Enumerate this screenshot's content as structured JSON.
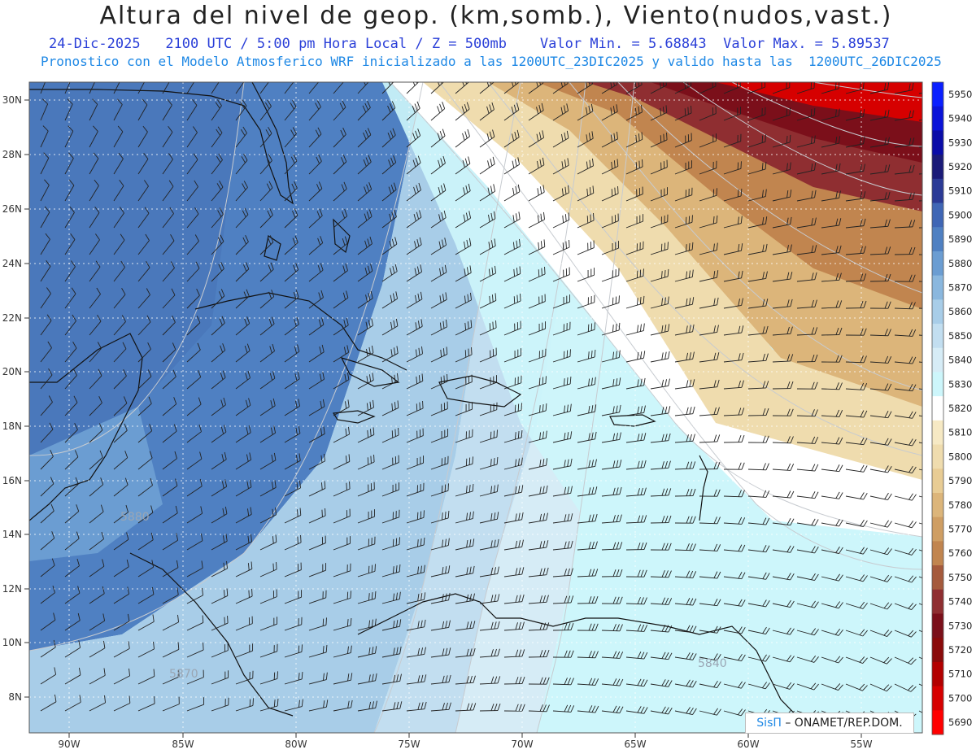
{
  "header": {
    "title": "Altura del nivel de geop. (km,somb.), Viento(nudos,vast.)",
    "date": "24-Dic-2025",
    "time_info": "2100 UTC / 5:00 pm Hora Local / Z = 500mb",
    "val_min": "Valor Min. = 5.68843",
    "val_max": "Valor Max. = 5.89537",
    "model_info": "Pronostico con el Modelo Atmosferico WRF inicializado a las 1200UTC_23DIC2025 y valido hasta las  1200UTC_26DIC2025"
  },
  "axes": {
    "lat_labels": [
      "30N",
      "28N",
      "26N",
      "24N",
      "22N",
      "20N",
      "18N",
      "16N",
      "14N",
      "12N",
      "10N",
      "8N"
    ],
    "lon_labels": [
      "90W",
      "85W",
      "80W",
      "75W",
      "70W",
      "65W",
      "60W",
      "55W"
    ]
  },
  "colorbar": {
    "levels": [
      "5950",
      "5940",
      "5930",
      "5920",
      "5910",
      "5900",
      "5890",
      "5880",
      "5870",
      "5860",
      "5850",
      "5840",
      "5830",
      "5820",
      "5810",
      "5800",
      "5790",
      "5780",
      "5770",
      "5760",
      "5750",
      "5740",
      "5730",
      "5720",
      "5710",
      "5700",
      "5690"
    ],
    "colors": [
      "#0a1fff",
      "#0a13d8",
      "#0a0ca8",
      "#1a1a78",
      "#2b3a96",
      "#3f66b5",
      "#4f80c2",
      "#6b9dd2",
      "#8ab7de",
      "#a8cde8",
      "#c2def0",
      "#d6ecf6",
      "#cdf6fb",
      "#ffffff",
      "#f6e9c4",
      "#efdcae",
      "#e8cc94",
      "#dcb57a",
      "#cf9e63",
      "#c1854f",
      "#a55a3c",
      "#8f2e31",
      "#7b0f1a",
      "#8a0a0a",
      "#b30000",
      "#d60000",
      "#ff0000"
    ]
  },
  "contour_labels": [
    "5880",
    "5870",
    "5840"
  ],
  "credit": {
    "sis": "SisΠ",
    "org": "– ONAMET/REP.DOM."
  }
}
